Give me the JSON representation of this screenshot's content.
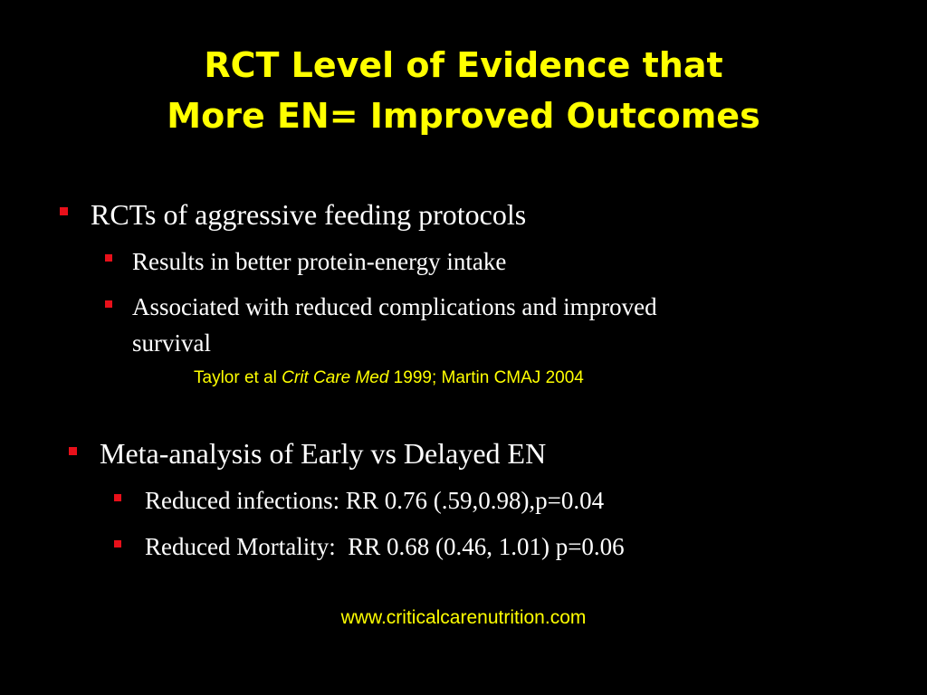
{
  "title": {
    "line1": "RCT Level of Evidence that",
    "line2": "More EN= Improved Outcomes"
  },
  "section1": {
    "heading": "RCTs of aggressive feeding protocols",
    "points": [
      "Results in better protein-energy intake",
      "Associated with reduced complications and improved",
      "survival"
    ],
    "citation": {
      "prefix": "Taylor et al ",
      "journal": "Crit Care Med",
      "suffix": " 1999; Martin CMAJ 2004"
    }
  },
  "section2": {
    "heading": "Meta-analysis of Early vs Delayed EN",
    "points": [
      "Reduced infections: RR 0.76 (.59,0.98),p=0.04",
      "Reduced Mortality:  RR 0.68 (0.46, 1.01) p=0.06"
    ]
  },
  "footer": {
    "url": "www.criticalcarenutrition.com"
  },
  "colors": {
    "background": "#000000",
    "title": "#FFFF00",
    "bullet": "#E8101A",
    "body_text": "#FFFFFF"
  }
}
